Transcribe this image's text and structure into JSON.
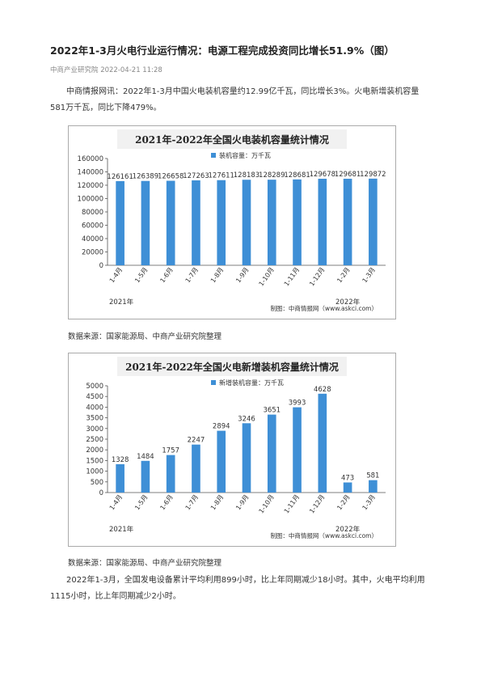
{
  "article": {
    "title": "2022年1-3月火电行业运行情况：电源工程完成投资同比增长51.9%（图）",
    "source_date": "中商产业研究院 2022-04-21 11:28",
    "para1": "中商情报网讯：2022年1-3月中国火电装机容量约12.99亿千瓦，同比增长3%。火电新增装机容量581万千瓦，同比下降479%。",
    "source1": "数据来源：国家能源局、中商产业研究院整理",
    "source2": "数据来源：国家能源局、中商产业研究院整理",
    "para2": "2022年1-3月，全国发电设备累计平均利用899小时，比上年同期减少18小时。其中，火电平均利用1115小时，比上年同期减少2小时。"
  },
  "colors": {
    "bar": "#3e8fd6",
    "title_bg": "#f1f1f1"
  },
  "chart_data": [
    {
      "type": "bar",
      "title": "2021年-2022年全国火电装机容量统计情况",
      "categories": [
        "1-4月",
        "1-5月",
        "1-6月",
        "1-7月",
        "1-8月",
        "1-9月",
        "1-10月",
        "1-11月",
        "1-12月",
        "1-2月",
        "1-3月"
      ],
      "year_labels": [
        "2021年",
        "2022年"
      ],
      "series": [
        {
          "name": "装机容量：万千瓦",
          "values": [
            126161,
            126389,
            126658,
            127263,
            127611,
            128183,
            128289,
            128681,
            129678,
            129681,
            129872
          ]
        }
      ],
      "value_labels": [
        "126161",
        "126389",
        "126658",
        "127263",
        "127611",
        "128183",
        "128289",
        "128681",
        "129678",
        "129681",
        "129872"
      ],
      "yticks": [
        "160000",
        "140000",
        "120000",
        "100000",
        "80000",
        "60000",
        "40000",
        "20000",
        "0"
      ],
      "ylim": [
        0,
        160000
      ],
      "legend": "top-left",
      "grid": false,
      "credit": "制图：中商情报网（www.askci.com）"
    },
    {
      "type": "bar",
      "title": "2021年-2022年全国火电新增装机容量统计情况",
      "categories": [
        "1-4月",
        "1-5月",
        "1-6月",
        "1-7月",
        "1-8月",
        "1-9月",
        "1-10月",
        "1-11月",
        "1-12月",
        "1-2月",
        "1-3月"
      ],
      "year_labels": [
        "2021年",
        "2022年"
      ],
      "series": [
        {
          "name": "新增装机容量：万千瓦",
          "values": [
            1328,
            1484,
            1757,
            2247,
            2894,
            3246,
            3651,
            3993,
            4628,
            473,
            581
          ]
        }
      ],
      "value_labels": [
        "1328",
        "1484",
        "1757",
        "2247",
        "2894",
        "3246",
        "3651",
        "3993",
        "4628",
        "473",
        "581"
      ],
      "yticks": [
        "5000",
        "4500",
        "4000",
        "3500",
        "3000",
        "2500",
        "2000",
        "1500",
        "1000",
        "500",
        "0"
      ],
      "ylim": [
        0,
        5000
      ],
      "legend": "top-left",
      "grid": false,
      "credit": "制图：中商情报网（www.askci.com）"
    }
  ]
}
